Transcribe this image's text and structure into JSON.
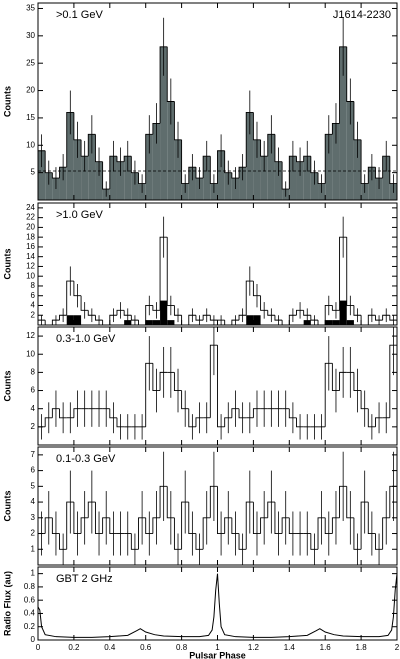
{
  "chart_data": [
    {
      "type": "histogram",
      "label": ">0.1 GeV",
      "annotation": "J1614-2230",
      "y_label": "Counts",
      "xlim": [
        0,
        2
      ],
      "ylim": [
        0,
        36
      ],
      "yticks": [
        5,
        10,
        15,
        20,
        25,
        30,
        35
      ],
      "background": 5.3,
      "bins": [
        0,
        0.04,
        0.08,
        0.12,
        0.16,
        0.2,
        0.24,
        0.28,
        0.32,
        0.36,
        0.4,
        0.44,
        0.48,
        0.52,
        0.56,
        0.6,
        0.64,
        0.68,
        0.72,
        0.76,
        0.8,
        0.84,
        0.88,
        0.92,
        0.96,
        1,
        1.04,
        1.08,
        1.12,
        1.16,
        1.2,
        1.24,
        1.28,
        1.32,
        1.36,
        1.4,
        1.44,
        1.48,
        1.52,
        1.56,
        1.6,
        1.64,
        1.68,
        1.72,
        1.76,
        1.8,
        1.84,
        1.88,
        1.92,
        1.96,
        2
      ],
      "series": [
        {
          "style": "filled",
          "color": "#5f6d6d",
          "values": [
            9,
            5,
            4,
            6,
            16,
            11,
            8,
            12,
            7,
            2,
            8,
            7,
            8,
            5,
            3,
            12,
            14,
            28,
            18,
            11,
            3,
            6,
            4,
            8,
            3,
            9,
            5,
            4,
            6,
            16,
            11,
            8,
            12,
            7,
            2,
            8,
            7,
            8,
            5,
            3,
            12,
            14,
            28,
            18,
            11,
            3,
            6,
            4,
            8,
            3
          ],
          "errors": [
            3,
            2.2,
            2,
            2.4,
            4,
            3.3,
            2.8,
            3.5,
            2.6,
            1.4,
            2.8,
            2.6,
            2.8,
            2.2,
            1.7,
            3.5,
            3.7,
            5.3,
            4.2,
            3.3,
            1.7,
            2.4,
            2,
            2.8,
            1.7,
            3,
            2.2,
            2,
            2.4,
            4,
            3.3,
            2.8,
            3.5,
            2.6,
            1.4,
            2.8,
            2.6,
            2.8,
            2.2,
            1.7,
            3.5,
            3.7,
            5.3,
            4.2,
            3.3,
            1.7,
            2.4,
            2,
            2.8,
            1.7
          ]
        }
      ]
    },
    {
      "type": "histogram",
      "label": ">1.0 GeV",
      "y_label": "Counts",
      "xlim": [
        0,
        2
      ],
      "ylim": [
        0,
        25
      ],
      "yticks": [
        2,
        4,
        6,
        8,
        10,
        12,
        14,
        16,
        18,
        20,
        22,
        24
      ],
      "bins": [
        0,
        0.04,
        0.08,
        0.12,
        0.16,
        0.2,
        0.24,
        0.28,
        0.32,
        0.36,
        0.4,
        0.44,
        0.48,
        0.52,
        0.56,
        0.6,
        0.64,
        0.68,
        0.72,
        0.76,
        0.8,
        0.84,
        0.88,
        0.92,
        0.96,
        1,
        1.04,
        1.08,
        1.12,
        1.16,
        1.2,
        1.24,
        1.28,
        1.32,
        1.36,
        1.4,
        1.44,
        1.48,
        1.52,
        1.56,
        1.6,
        1.64,
        1.68,
        1.72,
        1.76,
        1.8,
        1.84,
        1.88,
        1.92,
        1.96,
        2
      ],
      "series": [
        {
          "style": "step",
          "color": "#000000",
          "values": [
            1,
            0,
            1,
            2,
            9,
            6,
            3,
            2,
            1,
            0,
            2,
            3,
            2,
            1,
            0,
            4,
            3,
            18,
            4,
            2,
            0,
            2,
            1,
            2,
            1,
            1,
            0,
            1,
            2,
            9,
            6,
            3,
            2,
            1,
            0,
            2,
            3,
            2,
            1,
            0,
            4,
            3,
            18,
            4,
            2,
            0,
            2,
            1,
            2,
            1
          ],
          "errors": [
            1,
            0,
            1,
            1.4,
            3,
            2.4,
            1.7,
            1.4,
            1,
            0,
            1.4,
            1.7,
            1.4,
            1,
            0,
            2,
            1.7,
            4.2,
            2,
            1.4,
            0,
            1.4,
            1,
            1.4,
            1,
            1,
            0,
            1,
            1.4,
            3,
            2.4,
            1.7,
            1.4,
            1,
            0,
            1.4,
            1.7,
            1.4,
            1,
            0,
            2,
            1.7,
            4.2,
            2,
            1.4,
            0,
            1.4,
            1,
            1.4,
            1
          ]
        },
        {
          "style": "solid",
          "color": "#000000",
          "values": [
            0,
            0,
            0,
            0,
            2,
            2,
            0,
            0,
            0,
            0,
            0,
            0,
            1,
            0,
            0,
            1,
            1,
            5,
            1,
            0,
            0,
            0,
            0,
            0,
            0,
            0,
            0,
            0,
            0,
            2,
            2,
            0,
            0,
            0,
            0,
            0,
            0,
            1,
            0,
            0,
            1,
            1,
            5,
            1,
            0,
            0,
            0,
            0,
            0,
            0
          ]
        }
      ]
    },
    {
      "type": "histogram",
      "label": "0.3-1.0 GeV",
      "y_label": "Counts",
      "xlim": [
        0,
        2
      ],
      "ylim": [
        0,
        13
      ],
      "yticks": [
        2,
        4,
        6,
        8,
        10,
        12
      ],
      "bins": [
        0,
        0.04,
        0.08,
        0.12,
        0.16,
        0.2,
        0.24,
        0.28,
        0.32,
        0.36,
        0.4,
        0.44,
        0.48,
        0.52,
        0.56,
        0.6,
        0.64,
        0.68,
        0.72,
        0.76,
        0.8,
        0.84,
        0.88,
        0.92,
        0.96,
        1,
        1.04,
        1.08,
        1.12,
        1.16,
        1.2,
        1.24,
        1.28,
        1.32,
        1.36,
        1.4,
        1.44,
        1.48,
        1.52,
        1.56,
        1.6,
        1.64,
        1.68,
        1.72,
        1.76,
        1.8,
        1.84,
        1.88,
        1.92,
        1.96,
        2
      ],
      "series": [
        {
          "style": "step",
          "color": "#000000",
          "values": [
            2,
            3,
            4,
            3,
            3,
            4,
            4,
            4,
            4,
            4,
            3,
            2,
            2,
            2,
            2,
            9,
            6,
            8,
            8,
            6,
            4,
            2,
            3,
            3,
            11,
            2,
            3,
            4,
            3,
            3,
            4,
            4,
            4,
            4,
            4,
            3,
            2,
            2,
            2,
            2,
            9,
            6,
            8,
            8,
            6,
            4,
            2,
            3,
            3,
            11
          ],
          "errors": [
            1.4,
            1.7,
            2,
            1.7,
            1.7,
            2,
            2,
            2,
            2,
            2,
            1.7,
            1.4,
            1.4,
            1.4,
            1.4,
            3,
            2.4,
            2.8,
            2.8,
            2.4,
            2,
            1.4,
            1.7,
            1.7,
            3.3,
            1.4,
            1.7,
            2,
            1.7,
            1.7,
            2,
            2,
            2,
            2,
            2,
            1.7,
            1.4,
            1.4,
            1.4,
            1.4,
            3,
            2.4,
            2.8,
            2.8,
            2.4,
            2,
            1.4,
            1.7,
            1.7,
            3.3
          ]
        }
      ]
    },
    {
      "type": "histogram",
      "label": "0.1-0.3 GeV",
      "y_label": "Counts",
      "xlim": [
        0,
        2
      ],
      "ylim": [
        0,
        7.5
      ],
      "yticks": [
        1,
        2,
        3,
        4,
        5,
        6,
        7
      ],
      "bins": [
        0,
        0.04,
        0.08,
        0.12,
        0.16,
        0.2,
        0.24,
        0.28,
        0.32,
        0.36,
        0.4,
        0.44,
        0.48,
        0.52,
        0.56,
        0.6,
        0.64,
        0.68,
        0.72,
        0.76,
        0.8,
        0.84,
        0.88,
        0.92,
        0.96,
        1,
        1.04,
        1.08,
        1.12,
        1.16,
        1.2,
        1.24,
        1.28,
        1.32,
        1.36,
        1.4,
        1.44,
        1.48,
        1.52,
        1.56,
        1.6,
        1.64,
        1.68,
        1.72,
        1.76,
        1.8,
        1.84,
        1.88,
        1.92,
        1.96,
        2
      ],
      "series": [
        {
          "style": "step",
          "color": "#000000",
          "values": [
            2,
            3,
            2,
            1,
            4,
            2,
            3,
            4,
            2,
            3,
            2,
            2,
            2,
            1,
            3,
            2,
            3,
            5,
            3,
            1,
            4,
            2,
            1,
            3,
            5,
            2,
            3,
            2,
            1,
            4,
            2,
            3,
            4,
            2,
            3,
            2,
            2,
            2,
            1,
            3,
            2,
            3,
            5,
            3,
            1,
            4,
            2,
            1,
            3,
            5
          ],
          "errors": [
            1.4,
            1.7,
            1.4,
            1,
            2,
            1.4,
            1.7,
            2,
            1.4,
            1.7,
            1.4,
            1.4,
            1.4,
            1,
            1.7,
            1.4,
            1.7,
            2.2,
            1.7,
            1,
            2,
            1.4,
            1,
            1.7,
            2.2,
            1.4,
            1.7,
            1.4,
            1,
            2,
            1.4,
            1.7,
            2,
            1.4,
            1.7,
            1.4,
            1.4,
            1.4,
            1,
            1.7,
            1.4,
            1.7,
            2.2,
            1.7,
            1,
            2,
            1.4,
            1,
            1.7,
            2.2
          ]
        }
      ]
    },
    {
      "type": "line",
      "label": "GBT 2 GHz",
      "y_label": "Radio Flux (au)",
      "x_label": "Pulsar Phase",
      "xlim": [
        0,
        2
      ],
      "ylim": [
        0,
        1.1
      ],
      "yticks": [
        0,
        0.2,
        0.4,
        0.6,
        0.8,
        1
      ],
      "xticks": [
        0,
        0.2,
        0.4,
        0.6,
        0.8,
        1,
        1.2,
        1.4,
        1.6,
        1.8,
        2
      ],
      "x": [
        0,
        0.01,
        0.02,
        0.04,
        0.1,
        0.2,
        0.3,
        0.4,
        0.5,
        0.55,
        0.57,
        0.6,
        0.65,
        0.7,
        0.8,
        0.9,
        0.95,
        0.97,
        0.98,
        0.99,
        1,
        1.01,
        1.02,
        1.04,
        1.1,
        1.2,
        1.3,
        1.4,
        1.5,
        1.55,
        1.57,
        1.6,
        1.65,
        1.7,
        1.8,
        1.9,
        1.95,
        1.97,
        1.98,
        1.99,
        2
      ],
      "values": [
        0.5,
        0.45,
        0.2,
        0.08,
        0.05,
        0.04,
        0.04,
        0.05,
        0.07,
        0.14,
        0.17,
        0.12,
        0.08,
        0.06,
        0.05,
        0.05,
        0.07,
        0.15,
        0.35,
        0.75,
        1,
        0.55,
        0.2,
        0.08,
        0.05,
        0.04,
        0.04,
        0.05,
        0.07,
        0.14,
        0.17,
        0.12,
        0.08,
        0.06,
        0.05,
        0.05,
        0.07,
        0.15,
        0.35,
        0.75,
        1
      ],
      "color": "#000000"
    }
  ]
}
